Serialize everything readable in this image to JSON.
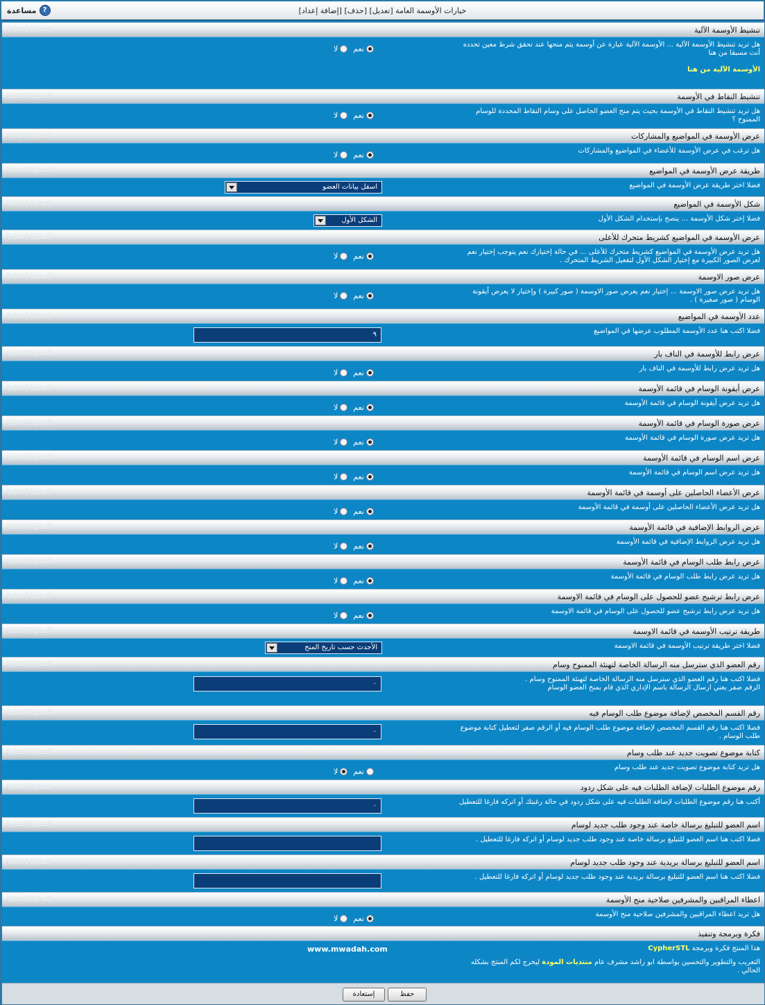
{
  "window": {
    "title": "خيارات الأوسمة العامة",
    "links": [
      "[تعديل]",
      "[حذف]",
      "[إضافة إعداد]"
    ],
    "help_label": "مساعدة",
    "help_icon": "question-mark-icon"
  },
  "row_actions": "[تعديل] [حذف]",
  "radio_labels": {
    "yes": "نعم",
    "no": "لا"
  },
  "settings": [
    {
      "title": "تنشيط الأوسمة الآلية",
      "lines": [
        "هل تريد تنشيط الأوسمة الآلية ... الأوسمة الآلية عبارة عن أوسمة يتم منحها عند تحقق شرط معين تحدده",
        "أنت مسبقا من هنا"
      ],
      "highlight": "الأوسمة الآلية من هنا",
      "type": "radio",
      "selected": "yes"
    },
    {
      "title": "تنشيط النقاط في الأوسمة",
      "lines": [
        "هل تريد تنشيط النقاط في الأوسمة بحيث يتم منح العضو الحاصل على وسام النقاط المحددة للوسام",
        "الممنوح ؟"
      ],
      "type": "radio",
      "selected": "yes"
    },
    {
      "title": "عرض الأوسمة في المواضيع والمشاركات",
      "lines": [
        "هل ترغب في عرض الأوسمة للأعضاء في المواضيع والمشاركات"
      ],
      "type": "radio",
      "selected": "yes"
    },
    {
      "title": "طريقة عرض الأوسمة في المواضيع",
      "lines": [
        "فضلا اختر طريقة عرض الأوسمة في المواضيع"
      ],
      "type": "select",
      "value": "اسفل بيانات العضو",
      "select_width": 225
    },
    {
      "title": "شكل الأوسمة في المواضيع",
      "lines": [
        "فضلا إختر شكل الأوسمة ... ينصح بإستخدام الشكل الأول"
      ],
      "type": "select",
      "value": "الشكل الأول",
      "select_width": 97
    },
    {
      "title": "عرض الأوسمة في المواضيع كشريط متحرك للأعلى",
      "lines": [
        "هل تريد عرض الأوسمة في المواضيع كشريط متحرك للأعلى ... في حالة إختيارك نعم يتوجب إختيار نعم",
        "لعرض الصور الكبيرة مع إختيار الشكل الأول لتفعيل الشريط المتحرك ."
      ],
      "type": "radio",
      "selected": "yes"
    },
    {
      "title": "عرض صور الاوسمة",
      "lines": [
        "هل تريد عرض صور الاوسمة ... إختيار نعم يعرض صور الاوسمة ( صور كبيرة ) وإختيار لا يعرض أيقونة",
        "الوسام ( صور صغيرة ) ."
      ],
      "type": "radio",
      "selected": "yes"
    },
    {
      "title": "عدد الأوسمة في المواضيع",
      "lines": [
        "فضلا اكتب هنا عدد الأوسمة المطلوب عرضها في المواضيع"
      ],
      "type": "input",
      "value": "٩"
    },
    {
      "title": "عرض رابط للأوسمة في الناف بار",
      "lines": [
        "هل تريد عرض رابط للأوسمة في الناف بار"
      ],
      "type": "radio",
      "selected": "yes"
    },
    {
      "title": "عرض أيقونة الوسام في قائمة الأوسمة",
      "lines": [
        "هل تريد عرض أيقونة الوسام في قائمة الأوسمة"
      ],
      "type": "radio",
      "selected": "yes"
    },
    {
      "title": "عرض صورة الوسام في قائمة الأوسمة",
      "lines": [
        "هل تريد عرض صورة الوسام في قائمة الأوسمة"
      ],
      "type": "radio",
      "selected": "yes"
    },
    {
      "title": "عرض اسم الوسام في قائمة الأوسمة",
      "lines": [
        "هل تريد عرض اسم الوسام في قائمة الأوسمة"
      ],
      "type": "radio",
      "selected": "yes"
    },
    {
      "title": "عرض الأعضاء الحاصلين على أوسمة في قائمة الأوسمة",
      "lines": [
        "هل تريد عرض الأعضاء الحاصلين على أوسمة في قائمة الأوسمة"
      ],
      "type": "radio",
      "selected": "yes"
    },
    {
      "title": "عرض الروابط الإضافية في قائمة الأوسمة",
      "lines": [
        "هل تريد عرض الروابط الإضافية في قائمة الأوسمة"
      ],
      "type": "radio",
      "selected": "yes"
    },
    {
      "title": "عرض رابط طلب الوسام في قائمة الأوسمة",
      "lines": [
        "هل تريد عرض رابط طلب الوسام في قائمة الأوسمة"
      ],
      "type": "radio",
      "selected": "yes"
    },
    {
      "title": "عرض رابط ترشيح عضو للحصول على الوسام في قائمة الاوسمة",
      "lines": [
        "هل تريد عرض رابط ترشيح عضو للحصول على الوسام في قائمة الاوسمة"
      ],
      "type": "radio",
      "selected": "yes"
    },
    {
      "title": "طريقة ترتيب الأوسمة في قائمة الاوسمة",
      "lines": [
        "فضلا اختر طريقة ترتيب الأوسمة في قائمة الاوسمة"
      ],
      "type": "select",
      "value": "الأحدث حسب تاريخ المنح",
      "select_width": 167
    },
    {
      "title": "رقم العضو الذي سترسل منه الرسالة الخاصة لتهنئة الممنوح وسام",
      "lines": [
        "فضلا اكتب هنا رقم العضو الذي سترسل منه الرسالة الخاصة لتهنئة الممنوح وسام .",
        "الرقم صفر يعني ارسال الرسالة باسم الإداري الذي قام بمنح العضو الوسام"
      ],
      "type": "input",
      "value": "٠"
    },
    {
      "title": "رقم القسم المخصص لإضافة موضوع طلب الوسام فيه",
      "lines": [
        "فضلا اكتب هنا رقم القسم المخصص لإضافة موضوع طلب الوسام فيه أو الرقم صفر لتعطيل كتابة موضوع",
        "طلب الوسام ."
      ],
      "type": "input",
      "value": "٠"
    },
    {
      "title": "كتابة موضوع تصويت جديد عند طلب وسام",
      "lines": [
        "هل تريد كتابة موضوع تصويت جديد عند طلب وسام"
      ],
      "type": "radio",
      "selected": "no"
    },
    {
      "title": "رقم موضوع الطلبات لإضافة الطلبات فيه على شكل ردود",
      "lines": [
        "أكتب هنا رقم موضوع الطلبات لإضافة الطلبات فيه على شكل ردود في حالة رغبتك أو اتركه فارغا للتعطيل"
      ],
      "type": "input",
      "value": "٠"
    },
    {
      "title": "اسم العضو للتبليغ برسالة خاصة عند وجود طلب جديد لوسام",
      "lines": [
        "فضلا اكتب هنا اسم العضو للتبليغ برسالة خاصة عند وجود طلب جديد لوسام أو اتركه فارغا للتعطيل ."
      ],
      "type": "input",
      "value": ""
    },
    {
      "title": "اسم العضو للتبليغ برسالة بريدية عند وجود طلب جديد لوسام",
      "lines": [
        "فضلا اكتب هنا اسم العضو للتبليغ برسالة بريدية عند وجود طلب جديد لوسام أو اتركه فارغا للتعطيل ."
      ],
      "type": "input",
      "value": ""
    },
    {
      "title": "اعطاء المراقبين والمشرفين صلاحية منح الأوسمة",
      "lines": [
        "هل تريد اعطاء المراقبين والمشرفين صلاحية منح الأوسمة"
      ],
      "type": "radio",
      "selected": "yes"
    }
  ],
  "credits": {
    "title": "فكرة وبرمجة وتنفيذ",
    "line1_prefix": "هذا المنتج فكرة وبرمجة",
    "author": "CypherSTL",
    "site": "www.mwadah.com",
    "line2_part1": "التعريب والتطوير والتحسين بواسطة ابو راشد مشرف عام",
    "forum": "منتديات المودة",
    "line2_part2": "ليخرج لكم المنتج بشكله",
    "line3": "الحالي ."
  },
  "buttons": {
    "save": "حفظ",
    "reset": "إستعادة"
  },
  "colors": {
    "background": "#0d86c6",
    "highlight": "#ffff66",
    "field": "#0b3d78"
  }
}
